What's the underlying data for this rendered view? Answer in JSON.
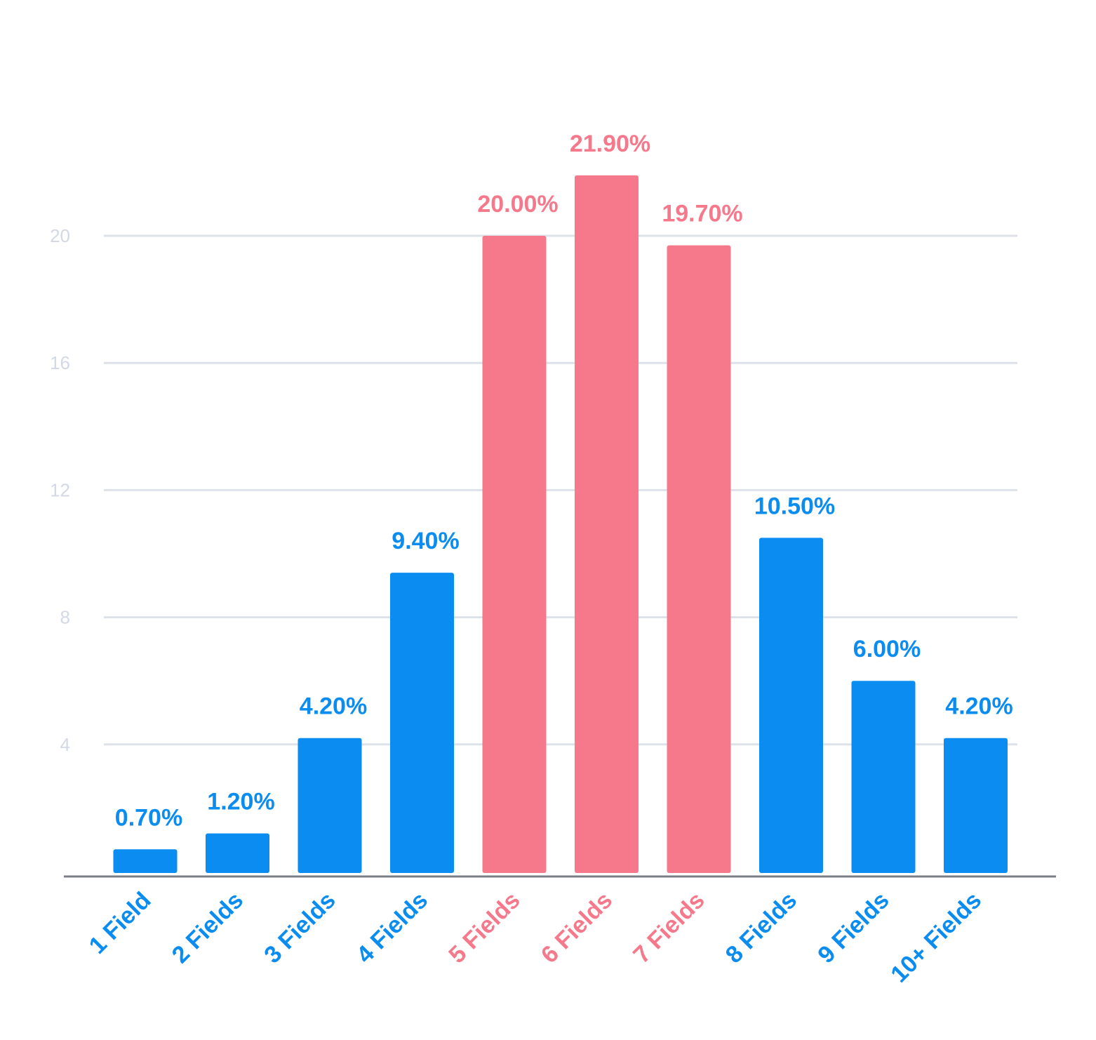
{
  "colors": {
    "normal": "#0a8cf0",
    "highlight": "#f6788b",
    "grid": "#dde2ea",
    "tick_text": "#d3d9e4",
    "axis": "#7a7f87"
  },
  "chart_data": {
    "type": "bar",
    "title": "",
    "xlabel": "",
    "ylabel": "",
    "ylim": [
      0,
      24
    ],
    "yticks": [
      4,
      8,
      12,
      16,
      20
    ],
    "grid": true,
    "categories": [
      "1 Field",
      "2 Fields",
      "3 Fields",
      "4 Fields",
      "5 Fields",
      "6 Fields",
      "7 Fields",
      "8 Fields",
      "9 Fields",
      "10+ Fields"
    ],
    "values": [
      0.7,
      1.2,
      4.2,
      9.4,
      20.0,
      21.9,
      19.7,
      10.5,
      6.0,
      4.2
    ],
    "data_labels": [
      "0.70%",
      "1.20%",
      "4.20%",
      "9.40%",
      "20.00%",
      "21.90%",
      "19.70%",
      "10.50%",
      "6.00%",
      "4.20%"
    ],
    "highlighted": [
      false,
      false,
      false,
      false,
      true,
      true,
      true,
      false,
      false,
      false
    ]
  }
}
